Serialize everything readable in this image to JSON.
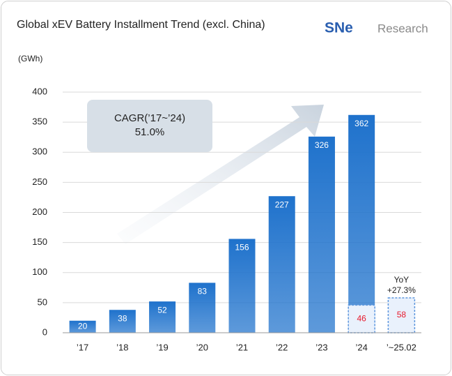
{
  "chart_data": {
    "type": "bar",
    "title": "Global xEV Battery Installment Trend (excl. China)",
    "logo": [
      "SNe",
      "Research"
    ],
    "y_label": "(GWh)",
    "categories": [
      "’17",
      "’18",
      "’19",
      "’20",
      "’21",
      "’22",
      "’23",
      "’24",
      "’~25.02"
    ],
    "series": [
      {
        "color": "#1f72cc",
        "values": [
          20,
          38,
          52,
          83,
          156,
          227,
          326,
          362,
          null
        ]
      },
      {
        "color": "#e9f1fc",
        "label_color": "#e8192c",
        "style": "dashed",
        "values": [
          null,
          null,
          null,
          null,
          null,
          null,
          null,
          46,
          58
        ]
      }
    ],
    "ylim": [
      0,
      400
    ],
    "yticks": [
      0,
      50,
      100,
      150,
      200,
      250,
      300,
      350,
      400
    ],
    "grid": true,
    "annotations": [
      {
        "text": [
          "CAGR(’17~’24)",
          "51.0%"
        ]
      },
      {
        "text": [
          "YoY",
          "+27.3%"
        ]
      }
    ]
  }
}
